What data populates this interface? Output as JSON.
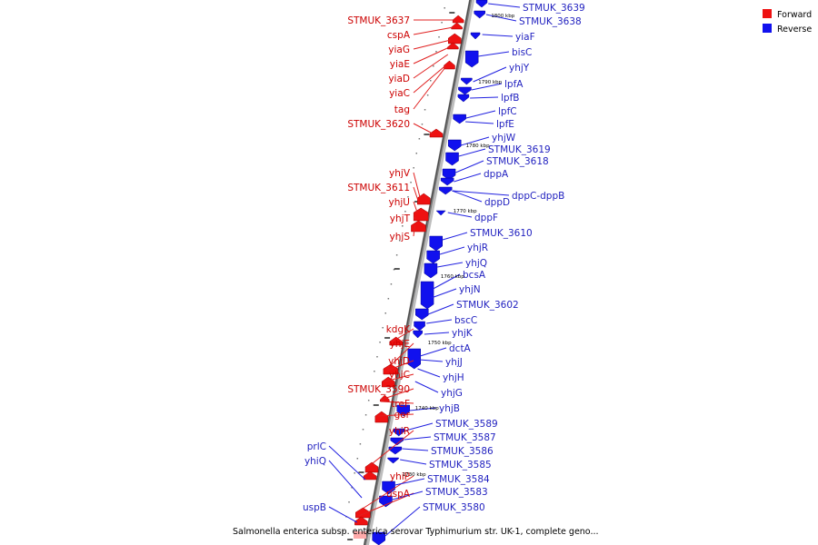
{
  "title": "Salmonella enterica subsp. enterica serovar Typhimurium str. UK-1, complete geno...",
  "legend": {
    "forward": "Forward",
    "reverse": "Reverse",
    "forward_color": "#ee1111",
    "reverse_color": "#1111ee"
  },
  "scale_marks": [
    "1800 kbp",
    "1790 kbp",
    "1780 kbp",
    "1770 kbp",
    "1760 kbp",
    "1750 kbp",
    "1740 kbp",
    "1730 kbp"
  ],
  "forward_genes": [
    "STMUK_3637",
    "cspA",
    "yiaG",
    "yiaE",
    "yiaD",
    "yiaC",
    "tag",
    "STMUK_3620",
    "yhjV",
    "STMUK_3611",
    "yhjU",
    "yhjT",
    "yhjS",
    "kdgK",
    "yhjE",
    "yhjD",
    "yhjC",
    "STMUK_3590",
    "treF",
    "gor",
    "yhiR",
    "yhiP",
    "uspA"
  ],
  "reverse_left_genes": [
    "prlC",
    "yhiQ",
    "uspB"
  ],
  "reverse_genes": [
    "STMUK_3639",
    "STMUK_3638",
    "yiaF",
    "bisC",
    "yhjY",
    "lpfA",
    "lpfB",
    "lpfC",
    "lpfE",
    "yhjW",
    "STMUK_3619",
    "STMUK_3618",
    "dppA",
    "dppC-dppB",
    "dppD",
    "dppF",
    "STMUK_3610",
    "yhjR",
    "yhjQ",
    "bcsA",
    "yhjN",
    "STMUK_3602",
    "bscC",
    "yhjK",
    "dctA",
    "yhjJ",
    "yhjH",
    "yhjG",
    "yhjB",
    "STMUK_3589",
    "STMUK_3587",
    "STMUK_3586",
    "STMUK_3585",
    "STMUK_3584",
    "STMUK_3583",
    "STMUK_3580"
  ]
}
